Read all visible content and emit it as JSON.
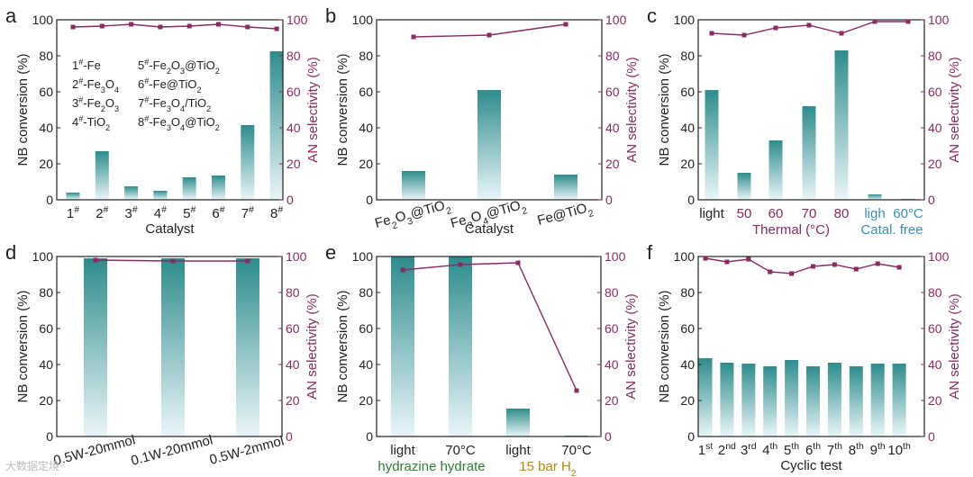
{
  "palette": {
    "bar_top": "#2e8c8c",
    "bar_bottom": "#eaf5f9",
    "line": "#8a2a62",
    "right_axis": "#8a2a62",
    "green_label": "#2e7d32",
    "brown_label": "#b8860b",
    "catal_free": "#3a8fb7"
  },
  "watermark": "大数据定境",
  "chart_data": [
    {
      "id": "a",
      "panel": "a",
      "type": "bar+line",
      "ylabel": "NB conversion (%)",
      "y2label": "AN selectivity (%)",
      "xlabel": "Catalyst",
      "ylim": [
        0,
        100
      ],
      "y2lim": [
        0,
        100
      ],
      "yticks": [
        0,
        20,
        40,
        60,
        80,
        100
      ],
      "categories": [
        "1#",
        "2#",
        "3#",
        "4#",
        "5#",
        "6#",
        "7#",
        "8#"
      ],
      "bars": [
        4,
        27,
        7.5,
        5,
        12.5,
        13.5,
        41.5,
        82.5
      ],
      "line": [
        96,
        96.5,
        97.5,
        96,
        96.5,
        97.5,
        96,
        95
      ],
      "legend": [
        "1#-Fe",
        "2#-Fe3O4",
        "3#-Fe2O3",
        "4#-TiO2",
        "5#-Fe2O3@TiO2",
        "6#-Fe@TiO2",
        "7#-Fe3O4/TiO2",
        "8#-Fe3O4@TiO2"
      ]
    },
    {
      "id": "b",
      "panel": "b",
      "type": "bar+line",
      "ylabel": "NB conversion (%)",
      "y2label": "AN selectivity (%)",
      "xlabel": "Catalyst",
      "ylim": [
        0,
        100
      ],
      "y2lim": [
        0,
        100
      ],
      "yticks": [
        0,
        20,
        40,
        60,
        80,
        100
      ],
      "categories": [
        "Fe2O3@TiO2",
        "Fe3O4@TiO2",
        "Fe@TiO2"
      ],
      "bars": [
        16,
        61,
        14
      ],
      "line": [
        90.5,
        91.5,
        97.5
      ]
    },
    {
      "id": "c",
      "panel": "c",
      "type": "bar+line",
      "ylabel": "NB conversion (%)",
      "y2label": "AN selectivity (%)",
      "ylim": [
        0,
        100
      ],
      "y2lim": [
        0,
        100
      ],
      "yticks": [
        0,
        20,
        40,
        60,
        80,
        100
      ],
      "categories": [
        "light",
        "50",
        "60",
        "70",
        "80",
        "ligh",
        "60°C"
      ],
      "bars": [
        61,
        15,
        33,
        52,
        83,
        3,
        0.5
      ],
      "line": [
        92.5,
        91.5,
        95.5,
        97,
        92.5,
        99,
        99
      ],
      "group_labels": [
        "Thermal (°C)",
        "Catal. free"
      ]
    },
    {
      "id": "d",
      "panel": "d",
      "type": "bar+line",
      "ylabel": "NB conversion (%)",
      "y2label": "AN selectivity (%)",
      "ylim": [
        0,
        100
      ],
      "y2lim": [
        0,
        100
      ],
      "yticks": [
        0,
        20,
        40,
        60,
        80,
        100
      ],
      "categories": [
        "0.5W-20mmol",
        "0.1W-20mmol",
        "0.5W-2mmol"
      ],
      "bars": [
        99,
        99,
        99
      ],
      "line": [
        98,
        97.5,
        97.5
      ]
    },
    {
      "id": "e",
      "panel": "e",
      "type": "bar+line",
      "ylabel": "NB conversion (%)",
      "y2label": "AN selectivity (%)",
      "ylim": [
        0,
        100
      ],
      "y2lim": [
        0,
        100
      ],
      "yticks": [
        0,
        20,
        40,
        60,
        80,
        100
      ],
      "categories": [
        "light",
        "70°C",
        "light",
        "70°C"
      ],
      "bars": [
        100,
        100,
        15.5,
        0.5
      ],
      "line": [
        92.5,
        95.5,
        96.5,
        25.5
      ],
      "group_labels": [
        "hydrazine hydrate",
        "15 bar H2"
      ]
    },
    {
      "id": "f",
      "panel": "f",
      "type": "bar+line",
      "ylabel": "NB conversion (%)",
      "y2label": "AN selectivity (%)",
      "xlabel": "Cyclic test",
      "ylim": [
        0,
        100
      ],
      "y2lim": [
        0,
        100
      ],
      "yticks": [
        0,
        20,
        40,
        60,
        80,
        100
      ],
      "categories": [
        "1st",
        "2nd",
        "3rd",
        "4th",
        "5th",
        "6th",
        "7th",
        "8th",
        "9th",
        "10th"
      ],
      "bars": [
        43.5,
        41,
        40.5,
        39,
        42.5,
        39,
        41,
        39,
        40.5,
        40.5
      ],
      "line": [
        99,
        97,
        98.5,
        91.5,
        90.5,
        94.5,
        95.5,
        93,
        96,
        94
      ]
    }
  ]
}
